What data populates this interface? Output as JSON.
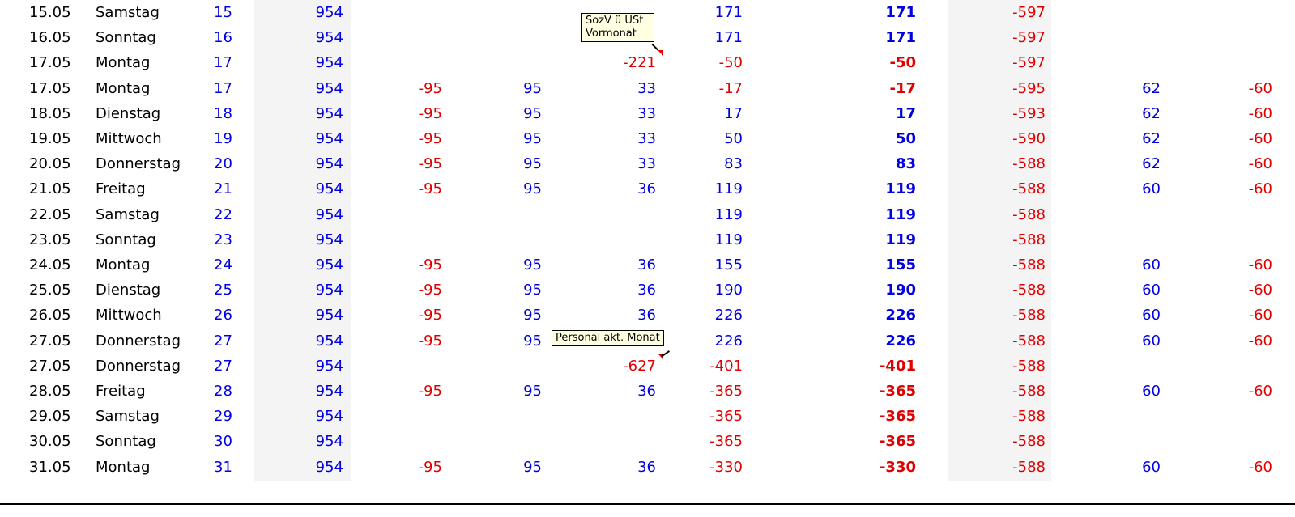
{
  "colors": {
    "positive": "#0000e0",
    "negative": "#e00000",
    "band": "#f4f4f4"
  },
  "rows": [
    {
      "date": "15.05",
      "day": "Samstag",
      "n": "15",
      "a": "954",
      "b": "",
      "c": "",
      "d": "",
      "e": "171",
      "f": "171",
      "g": "-597",
      "h": "",
      "i": ""
    },
    {
      "date": "16.05",
      "day": "Sonntag",
      "n": "16",
      "a": "954",
      "b": "",
      "c": "",
      "d": "",
      "e": "171",
      "f": "171",
      "g": "-597",
      "h": "",
      "i": ""
    },
    {
      "date": "17.05",
      "day": "Montag",
      "n": "17",
      "a": "954",
      "b": "",
      "c": "",
      "d": "-221",
      "e": "-50",
      "f": "-50",
      "g": "-597",
      "h": "",
      "i": ""
    },
    {
      "date": "17.05",
      "day": "Montag",
      "n": "17",
      "a": "954",
      "b": "-95",
      "c": "95",
      "d": "33",
      "e": "-17",
      "f": "-17",
      "g": "-595",
      "h": "62",
      "i": "-60"
    },
    {
      "date": "18.05",
      "day": "Dienstag",
      "n": "18",
      "a": "954",
      "b": "-95",
      "c": "95",
      "d": "33",
      "e": "17",
      "f": "17",
      "g": "-593",
      "h": "62",
      "i": "-60"
    },
    {
      "date": "19.05",
      "day": "Mittwoch",
      "n": "19",
      "a": "954",
      "b": "-95",
      "c": "95",
      "d": "33",
      "e": "50",
      "f": "50",
      "g": "-590",
      "h": "62",
      "i": "-60"
    },
    {
      "date": "20.05",
      "day": "Donnerstag",
      "n": "20",
      "a": "954",
      "b": "-95",
      "c": "95",
      "d": "33",
      "e": "83",
      "f": "83",
      "g": "-588",
      "h": "62",
      "i": "-60"
    },
    {
      "date": "21.05",
      "day": "Freitag",
      "n": "21",
      "a": "954",
      "b": "-95",
      "c": "95",
      "d": "36",
      "e": "119",
      "f": "119",
      "g": "-588",
      "h": "60",
      "i": "-60"
    },
    {
      "date": "22.05",
      "day": "Samstag",
      "n": "22",
      "a": "954",
      "b": "",
      "c": "",
      "d": "",
      "e": "119",
      "f": "119",
      "g": "-588",
      "h": "",
      "i": ""
    },
    {
      "date": "23.05",
      "day": "Sonntag",
      "n": "23",
      "a": "954",
      "b": "",
      "c": "",
      "d": "",
      "e": "119",
      "f": "119",
      "g": "-588",
      "h": "",
      "i": ""
    },
    {
      "date": "24.05",
      "day": "Montag",
      "n": "24",
      "a": "954",
      "b": "-95",
      "c": "95",
      "d": "36",
      "e": "155",
      "f": "155",
      "g": "-588",
      "h": "60",
      "i": "-60"
    },
    {
      "date": "25.05",
      "day": "Dienstag",
      "n": "25",
      "a": "954",
      "b": "-95",
      "c": "95",
      "d": "36",
      "e": "190",
      "f": "190",
      "g": "-588",
      "h": "60",
      "i": "-60"
    },
    {
      "date": "26.05",
      "day": "Mittwoch",
      "n": "26",
      "a": "954",
      "b": "-95",
      "c": "95",
      "d": "36",
      "e": "226",
      "f": "226",
      "g": "-588",
      "h": "60",
      "i": "-60"
    },
    {
      "date": "27.05",
      "day": "Donnerstag",
      "n": "27",
      "a": "954",
      "b": "-95",
      "c": "95",
      "d": "",
      "e": "226",
      "f": "226",
      "g": "-588",
      "h": "60",
      "i": "-60"
    },
    {
      "date": "27.05",
      "day": "Donnerstag",
      "n": "27",
      "a": "954",
      "b": "",
      "c": "",
      "d": "-627",
      "e": "-401",
      "f": "-401",
      "g": "-588",
      "h": "",
      "i": ""
    },
    {
      "date": "28.05",
      "day": "Freitag",
      "n": "28",
      "a": "954",
      "b": "-95",
      "c": "95",
      "d": "36",
      "e": "-365",
      "f": "-365",
      "g": "-588",
      "h": "60",
      "i": "-60"
    },
    {
      "date": "29.05",
      "day": "Samstag",
      "n": "29",
      "a": "954",
      "b": "",
      "c": "",
      "d": "",
      "e": "-365",
      "f": "-365",
      "g": "-588",
      "h": "",
      "i": ""
    },
    {
      "date": "30.05",
      "day": "Sonntag",
      "n": "30",
      "a": "954",
      "b": "",
      "c": "",
      "d": "",
      "e": "-365",
      "f": "-365",
      "g": "-588",
      "h": "",
      "i": ""
    },
    {
      "date": "31.05",
      "day": "Montag",
      "n": "31",
      "a": "954",
      "b": "-95",
      "c": "95",
      "d": "36",
      "e": "-330",
      "f": "-330",
      "g": "-588",
      "h": "60",
      "i": "-60"
    }
  ],
  "comments": {
    "sozv": "SozV ü USt\nVormonat",
    "personal": "Personal akt. Monat"
  }
}
